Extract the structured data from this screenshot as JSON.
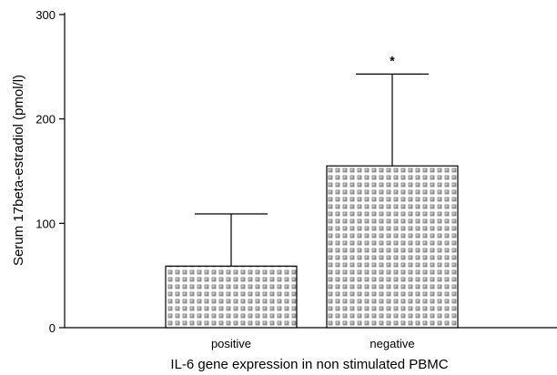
{
  "chart_data": {
    "type": "bar",
    "title": "",
    "xlabel": "IL-6 gene expression in non stimulated PBMC",
    "ylabel": "Serum 17beta-estradiol (pmol/l)",
    "ylim": [
      0,
      300
    ],
    "yticks": [
      "0",
      "100",
      "200",
      "300"
    ],
    "categories": [
      "positive",
      "negative"
    ],
    "values": [
      59,
      155
    ],
    "error_upper": [
      109,
      243
    ],
    "annotations": [
      "",
      "*"
    ],
    "bar_fill": "stippled gray pattern",
    "grid": false,
    "legend": "none"
  }
}
